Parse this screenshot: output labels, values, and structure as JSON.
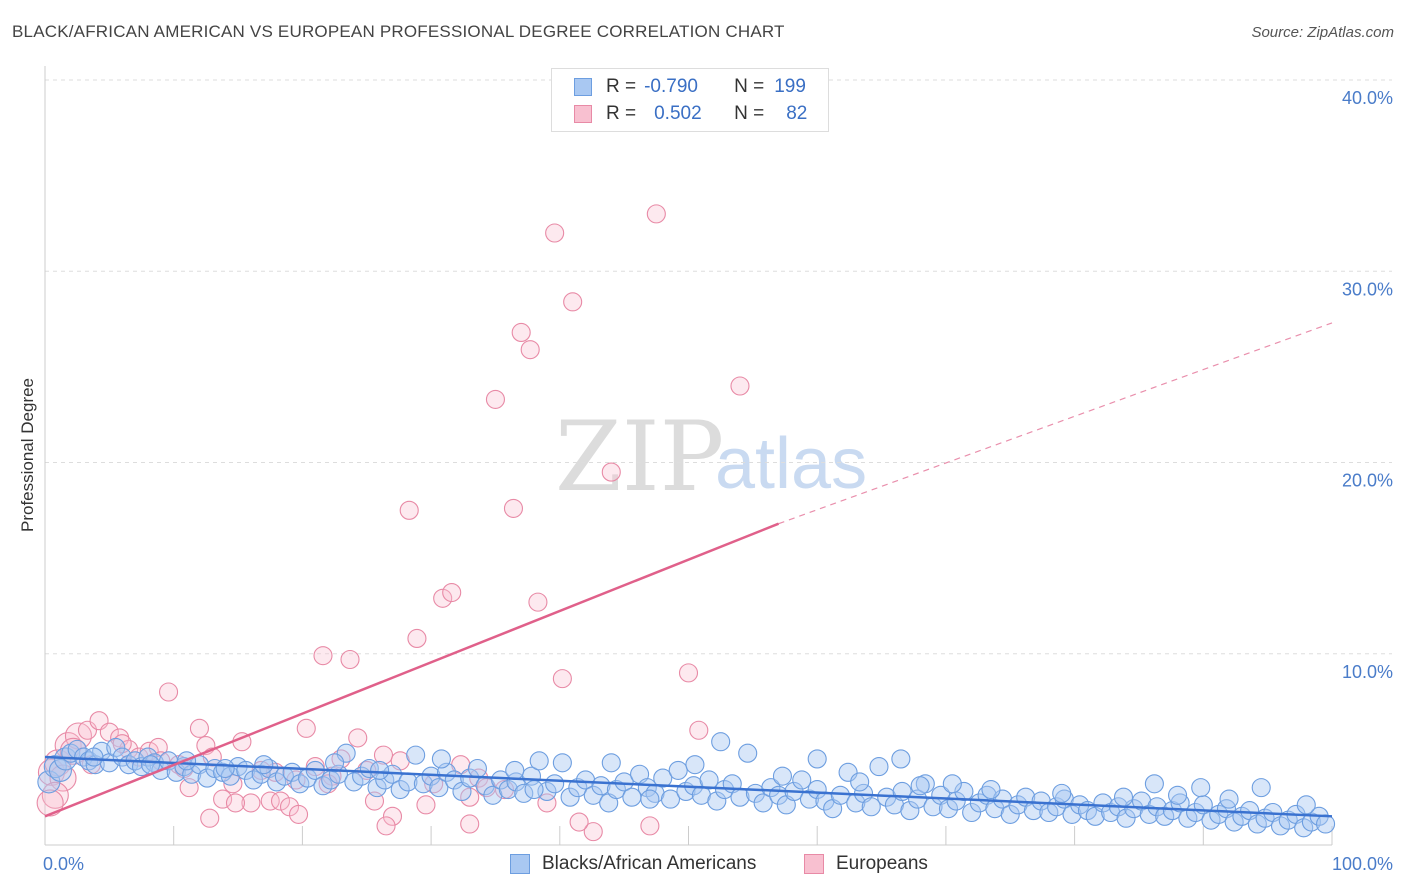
{
  "title": "BLACK/AFRICAN AMERICAN VS EUROPEAN PROFESSIONAL DEGREE CORRELATION CHART",
  "source": "Source: ZipAtlas.com",
  "watermark": {
    "zip": "ZIP",
    "atlas": "atlas"
  },
  "legend": {
    "rows": [
      {
        "r_label": "R =",
        "r_value": "-0.790",
        "n_label": "N =",
        "n_value": "199",
        "color": "#a9c8f2",
        "border": "#6d9ee0"
      },
      {
        "r_label": "R =",
        "r_value": "0.502",
        "n_label": "N =",
        "n_value": "82",
        "color": "#f8c0d0",
        "border": "#e88aa6"
      }
    ]
  },
  "bottom_legend": {
    "blue_label": "Blacks/African Americans",
    "pink_label": "Europeans"
  },
  "chart_data": {
    "type": "scatter",
    "ylabel": "Professional Degree",
    "x_ticks": [
      "0.0%",
      "100.0%"
    ],
    "y_ticks": [
      "10.0%",
      "20.0%",
      "30.0%",
      "40.0%"
    ],
    "xlim": [
      0,
      100
    ],
    "ylim": [
      0,
      42
    ],
    "grid": true,
    "colors": {
      "blue": "#6d9ee0",
      "blue_fill": "rgba(169,200,242,0.45)",
      "blue_line": "#3a72d0",
      "pink": "#e88aa6",
      "pink_fill": "rgba(248,192,208,0.35)",
      "pink_line": "#e0608a"
    },
    "series": [
      {
        "name": "Blacks/African Americans",
        "trend": {
          "x": [
            0,
            100
          ],
          "y": [
            4.6,
            1.5
          ]
        },
        "points": [
          [
            0.3,
            3.3
          ],
          [
            0.8,
            4.1
          ],
          [
            1.2,
            3.9
          ],
          [
            1.6,
            4.5
          ],
          [
            2.0,
            4.8
          ],
          [
            2.5,
            5.0
          ],
          [
            3.0,
            4.6
          ],
          [
            3.4,
            4.4
          ],
          [
            3.9,
            4.2
          ],
          [
            4.4,
            4.9
          ],
          [
            5.0,
            4.3
          ],
          [
            5.5,
            5.1
          ],
          [
            6.0,
            4.6
          ],
          [
            6.5,
            4.2
          ],
          [
            7.0,
            4.4
          ],
          [
            7.5,
            4.1
          ],
          [
            8.0,
            4.6
          ],
          [
            8.5,
            4.3
          ],
          [
            9.0,
            3.9
          ],
          [
            9.6,
            4.4
          ],
          [
            10.2,
            3.8
          ],
          [
            10.8,
            4.1
          ],
          [
            11.4,
            3.7
          ],
          [
            12.0,
            4.2
          ],
          [
            12.6,
            3.5
          ],
          [
            13.2,
            4.0
          ],
          [
            13.8,
            3.8
          ],
          [
            14.4,
            3.6
          ],
          [
            15.0,
            4.1
          ],
          [
            15.6,
            3.9
          ],
          [
            16.2,
            3.4
          ],
          [
            16.8,
            3.7
          ],
          [
            17.4,
            4.0
          ],
          [
            18.0,
            3.3
          ],
          [
            18.6,
            3.6
          ],
          [
            19.2,
            3.8
          ],
          [
            19.8,
            3.2
          ],
          [
            20.4,
            3.5
          ],
          [
            21.0,
            3.9
          ],
          [
            21.6,
            3.1
          ],
          [
            22.2,
            3.4
          ],
          [
            22.8,
            3.7
          ],
          [
            23.4,
            4.8
          ],
          [
            24.0,
            3.3
          ],
          [
            24.6,
            3.6
          ],
          [
            25.2,
            4.0
          ],
          [
            25.8,
            3.0
          ],
          [
            26.4,
            3.4
          ],
          [
            27.0,
            3.7
          ],
          [
            27.6,
            2.9
          ],
          [
            28.2,
            3.3
          ],
          [
            28.8,
            4.7
          ],
          [
            29.4,
            3.2
          ],
          [
            30.0,
            3.6
          ],
          [
            30.6,
            3.0
          ],
          [
            31.2,
            3.8
          ],
          [
            31.8,
            3.4
          ],
          [
            32.4,
            2.8
          ],
          [
            33.0,
            3.5
          ],
          [
            33.6,
            4.0
          ],
          [
            34.2,
            3.1
          ],
          [
            34.8,
            2.6
          ],
          [
            35.4,
            3.4
          ],
          [
            36.0,
            2.9
          ],
          [
            36.6,
            3.3
          ],
          [
            37.2,
            2.7
          ],
          [
            37.8,
            3.6
          ],
          [
            38.4,
            4.4
          ],
          [
            39.0,
            2.8
          ],
          [
            39.6,
            3.2
          ],
          [
            40.2,
            4.3
          ],
          [
            40.8,
            2.5
          ],
          [
            41.4,
            3.0
          ],
          [
            42.0,
            3.4
          ],
          [
            42.6,
            2.6
          ],
          [
            43.2,
            3.1
          ],
          [
            43.8,
            2.2
          ],
          [
            44.4,
            2.9
          ],
          [
            45.0,
            3.3
          ],
          [
            45.6,
            2.5
          ],
          [
            46.2,
            3.7
          ],
          [
            46.8,
            3.0
          ],
          [
            47.4,
            2.7
          ],
          [
            48.0,
            3.5
          ],
          [
            48.6,
            2.4
          ],
          [
            49.2,
            3.9
          ],
          [
            49.8,
            2.8
          ],
          [
            50.4,
            3.1
          ],
          [
            51.0,
            2.6
          ],
          [
            51.6,
            3.4
          ],
          [
            52.2,
            2.3
          ],
          [
            52.8,
            2.9
          ],
          [
            53.4,
            3.2
          ],
          [
            54.0,
            2.5
          ],
          [
            54.6,
            4.8
          ],
          [
            55.2,
            2.7
          ],
          [
            55.8,
            2.2
          ],
          [
            56.4,
            3.0
          ],
          [
            57.0,
            2.6
          ],
          [
            57.6,
            2.1
          ],
          [
            58.2,
            2.8
          ],
          [
            58.8,
            3.4
          ],
          [
            59.4,
            2.4
          ],
          [
            60.0,
            2.9
          ],
          [
            60.6,
            2.3
          ],
          [
            61.2,
            1.9
          ],
          [
            61.8,
            2.6
          ],
          [
            62.4,
            3.8
          ],
          [
            63.0,
            2.2
          ],
          [
            63.6,
            2.7
          ],
          [
            64.2,
            2.0
          ],
          [
            64.8,
            4.1
          ],
          [
            65.4,
            2.5
          ],
          [
            66.0,
            2.1
          ],
          [
            66.6,
            2.8
          ],
          [
            67.2,
            1.8
          ],
          [
            67.8,
            2.4
          ],
          [
            68.4,
            3.2
          ],
          [
            69.0,
            2.0
          ],
          [
            69.6,
            2.6
          ],
          [
            70.2,
            1.9
          ],
          [
            70.8,
            2.3
          ],
          [
            71.4,
            2.8
          ],
          [
            72.0,
            1.7
          ],
          [
            72.6,
            2.2
          ],
          [
            73.2,
            2.6
          ],
          [
            73.8,
            1.9
          ],
          [
            74.4,
            2.4
          ],
          [
            75.0,
            1.6
          ],
          [
            75.6,
            2.1
          ],
          [
            76.2,
            2.5
          ],
          [
            76.8,
            1.8
          ],
          [
            77.4,
            2.3
          ],
          [
            78.0,
            1.7
          ],
          [
            78.6,
            2.0
          ],
          [
            79.2,
            2.4
          ],
          [
            79.8,
            1.6
          ],
          [
            80.4,
            2.1
          ],
          [
            81.0,
            1.8
          ],
          [
            81.6,
            1.5
          ],
          [
            82.2,
            2.2
          ],
          [
            82.8,
            1.7
          ],
          [
            83.4,
            2.0
          ],
          [
            84.0,
            1.4
          ],
          [
            84.6,
            1.9
          ],
          [
            85.2,
            2.3
          ],
          [
            85.8,
            1.6
          ],
          [
            86.4,
            2.0
          ],
          [
            87.0,
            1.5
          ],
          [
            87.6,
            1.8
          ],
          [
            88.2,
            2.2
          ],
          [
            88.8,
            1.4
          ],
          [
            89.4,
            1.7
          ],
          [
            90.0,
            2.1
          ],
          [
            90.6,
            1.3
          ],
          [
            91.2,
            1.6
          ],
          [
            91.8,
            1.9
          ],
          [
            92.4,
            1.2
          ],
          [
            93.0,
            1.5
          ],
          [
            93.6,
            1.8
          ],
          [
            94.2,
            1.1
          ],
          [
            94.8,
            1.4
          ],
          [
            95.4,
            1.7
          ],
          [
            96.0,
            1.0
          ],
          [
            96.6,
            1.3
          ],
          [
            97.2,
            1.6
          ],
          [
            97.8,
            0.9
          ],
          [
            98.4,
            1.2
          ],
          [
            99.0,
            1.5
          ],
          [
            99.5,
            1.1
          ],
          [
            3.8,
            4.6
          ],
          [
            11.0,
            4.4
          ],
          [
            17.0,
            4.2
          ],
          [
            22.5,
            4.3
          ],
          [
            30.8,
            4.5
          ],
          [
            36.5,
            3.9
          ],
          [
            44.0,
            4.3
          ],
          [
            50.5,
            4.2
          ],
          [
            57.3,
            3.6
          ],
          [
            63.3,
            3.3
          ],
          [
            68.0,
            3.1
          ],
          [
            73.5,
            2.9
          ],
          [
            79.0,
            2.7
          ],
          [
            83.8,
            2.5
          ],
          [
            88.0,
            2.6
          ],
          [
            92.0,
            2.4
          ],
          [
            94.5,
            3.0
          ],
          [
            98.0,
            2.1
          ],
          [
            52.5,
            5.4
          ],
          [
            60.0,
            4.5
          ],
          [
            66.5,
            4.5
          ],
          [
            70.5,
            3.2
          ],
          [
            86.2,
            3.2
          ],
          [
            89.8,
            3.0
          ],
          [
            47.0,
            2.4
          ],
          [
            38.0,
            2.9
          ],
          [
            26.0,
            3.9
          ],
          [
            14.0,
            4.0
          ],
          [
            8.2,
            4.2
          ]
        ]
      },
      {
        "name": "Europeans",
        "trend": {
          "x": [
            0,
            57
          ],
          "y": [
            1.5,
            16.8
          ]
        },
        "trend_dashed": {
          "x": [
            57,
            100
          ],
          "y": [
            16.8,
            27.3
          ]
        },
        "points": [
          [
            0.5,
            3.8
          ],
          [
            1.0,
            4.3
          ],
          [
            1.8,
            5.2
          ],
          [
            2.6,
            5.7
          ],
          [
            3.3,
            6.0
          ],
          [
            4.2,
            6.5
          ],
          [
            5.0,
            5.9
          ],
          [
            5.8,
            5.6
          ],
          [
            6.5,
            5.0
          ],
          [
            7.3,
            4.6
          ],
          [
            8.1,
            4.9
          ],
          [
            8.8,
            5.1
          ],
          [
            9.6,
            8.0
          ],
          [
            10.4,
            4.2
          ],
          [
            11.2,
            3.0
          ],
          [
            12.0,
            6.1
          ],
          [
            12.5,
            5.2
          ],
          [
            13.0,
            4.6
          ],
          [
            13.8,
            2.4
          ],
          [
            14.6,
            3.2
          ],
          [
            15.3,
            5.4
          ],
          [
            16.0,
            2.2
          ],
          [
            16.8,
            3.9
          ],
          [
            17.5,
            2.3
          ],
          [
            18.3,
            2.3
          ],
          [
            19.0,
            2.0
          ],
          [
            19.7,
            1.6
          ],
          [
            20.3,
            6.1
          ],
          [
            21.0,
            4.1
          ],
          [
            21.6,
            9.9
          ],
          [
            22.3,
            3.6
          ],
          [
            23.0,
            4.5
          ],
          [
            23.7,
            9.7
          ],
          [
            24.3,
            5.6
          ],
          [
            25.0,
            3.9
          ],
          [
            25.6,
            2.3
          ],
          [
            26.3,
            4.7
          ],
          [
            27.0,
            1.5
          ],
          [
            27.6,
            4.4
          ],
          [
            28.3,
            17.5
          ],
          [
            28.9,
            10.8
          ],
          [
            29.6,
            2.1
          ],
          [
            30.2,
            3.2
          ],
          [
            30.9,
            12.9
          ],
          [
            31.6,
            13.2
          ],
          [
            32.3,
            4.2
          ],
          [
            33.0,
            2.5
          ],
          [
            33.7,
            3.5
          ],
          [
            34.3,
            3.0
          ],
          [
            35.0,
            23.3
          ],
          [
            35.7,
            2.9
          ],
          [
            36.4,
            17.6
          ],
          [
            37.0,
            26.8
          ],
          [
            37.7,
            25.9
          ],
          [
            38.3,
            12.7
          ],
          [
            39.0,
            2.2
          ],
          [
            39.6,
            32.0
          ],
          [
            40.2,
            8.7
          ],
          [
            41.0,
            28.4
          ],
          [
            42.6,
            0.7
          ],
          [
            44.0,
            19.5
          ],
          [
            47.5,
            33.0
          ],
          [
            50.0,
            9.0
          ],
          [
            50.8,
            6.0
          ],
          [
            54.0,
            24.0
          ],
          [
            47.0,
            1.0
          ],
          [
            41.5,
            1.2
          ],
          [
            26.5,
            1.0
          ],
          [
            22.0,
            3.2
          ],
          [
            19.5,
            3.4
          ],
          [
            14.8,
            2.2
          ],
          [
            10.8,
            4.0
          ],
          [
            6.0,
            5.3
          ],
          [
            3.6,
            4.2
          ],
          [
            2.2,
            4.9
          ],
          [
            1.4,
            3.5
          ],
          [
            0.8,
            2.6
          ],
          [
            0.4,
            2.2
          ],
          [
            9.0,
            4.4
          ],
          [
            12.8,
            1.4
          ],
          [
            17.9,
            3.8
          ],
          [
            33.0,
            1.1
          ]
        ]
      }
    ]
  }
}
